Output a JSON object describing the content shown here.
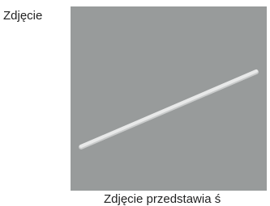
{
  "field": {
    "label": "Zdjęcie",
    "caption": "Zdjęcie przedstawia ś"
  }
}
